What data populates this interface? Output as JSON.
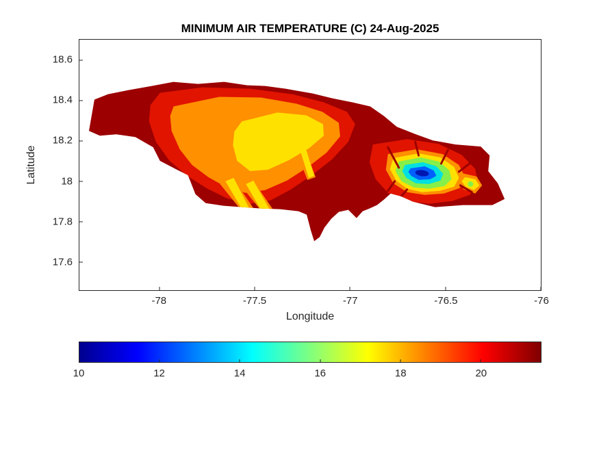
{
  "figure": {
    "background": "#ffffff",
    "text_color": "#262626",
    "axis_color": "#262626"
  },
  "island_colors": {
    "base_dark_red": "#9c0000",
    "hot_red": "#e11400",
    "warm_orange": "#ff9000",
    "mild_yellow": "#ffe100",
    "cool_green": "#86ef4a",
    "cooler_cyan": "#00e0e0",
    "cold_blue": "#0060ff",
    "coldest_dark_blue": "#0018b0"
  },
  "chart_data": {
    "type": "heatmap",
    "title": "MINIMUM AIR TEMPERATURE (C) 24-Aug-2025",
    "xlabel": "Longitude",
    "ylabel": "Latitude",
    "region": "Jamaica",
    "grid": false,
    "xlim": [
      -78.42,
      -76.0
    ],
    "ylim": [
      17.46,
      18.7
    ],
    "x_ticks": [
      -78,
      -77.5,
      -77,
      -76.5,
      -76
    ],
    "x_tick_labels": [
      "-78",
      "-77.5",
      "-77",
      "-76.5",
      "-76"
    ],
    "y_ticks": [
      18.6,
      18.4,
      18.2,
      18,
      17.8,
      17.6
    ],
    "y_tick_labels": [
      "18.6",
      "18.4",
      "18.2",
      "18",
      "17.8",
      "17.6"
    ],
    "colormap": {
      "name": "jet",
      "stops": [
        {
          "pos": 0,
          "color": "#00008f"
        },
        {
          "pos": 0.125,
          "color": "#0000ff"
        },
        {
          "pos": 0.375,
          "color": "#00ffff"
        },
        {
          "pos": 0.625,
          "color": "#ffff00"
        },
        {
          "pos": 0.875,
          "color": "#ff0000"
        },
        {
          "pos": 1,
          "color": "#800000"
        }
      ]
    },
    "colorbar": {
      "orientation": "horizontal",
      "min": 10,
      "max": 21.5,
      "ticks": [
        10,
        12,
        14,
        16,
        18,
        20
      ],
      "tick_labels": [
        "10",
        "12",
        "14",
        "16",
        "18",
        "20"
      ]
    },
    "features": [
      {
        "area": "Coastal lowlands and most of the island",
        "approx_temp_c": 21
      },
      {
        "area": "West-central interior highlands (Cockpit Country to Manchester)",
        "approx_temp_c": 17.5
      },
      {
        "area": "Interior yellow pockets and southern valley streaks",
        "approx_temp_c": 17
      },
      {
        "area": "Blue Mountains slopes, eastern Jamaica (green/cyan ring)",
        "approx_temp_c": 13.5
      },
      {
        "area": "Blue Mountains peak minimum near (-76.6, 18.05) (dark blue)",
        "approx_temp_c": 10.5
      },
      {
        "area": "Small cool pocket near eastern tip",
        "approx_temp_c": 15
      }
    ]
  }
}
